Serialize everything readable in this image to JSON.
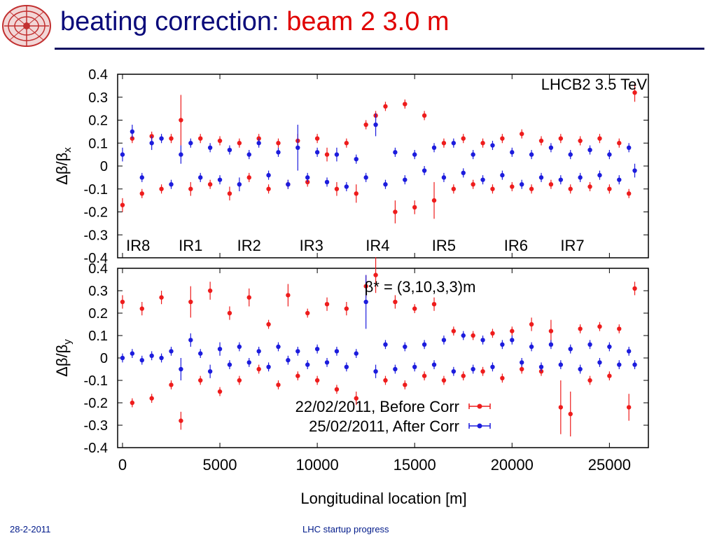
{
  "slide": {
    "title_main": "beating correction:",
    "title_sub": "beam 2  3.0 m",
    "footer_date": "28-2-2011",
    "footer_center": "LHC startup progress",
    "logo_icon": "lhc-logo-icon"
  },
  "colors": {
    "title_blue": "#0a0a7a",
    "title_red": "#e00000",
    "before_series": "#ee1c1c",
    "after_series": "#1c1cdd"
  },
  "chart_data": [
    {
      "type": "scatter",
      "panel": "top",
      "ylabel": "Δβ/βx",
      "xlim": [
        -250,
        27000
      ],
      "ylim": [
        -0.4,
        0.4
      ],
      "yticks": [
        "0.4",
        "0.3",
        "0.2",
        "0.1",
        "0",
        "-0.1",
        "-0.2",
        "-0.3",
        "-0.4"
      ],
      "annotation": "LHCB2 3.5 TeV",
      "ir_labels": [
        {
          "label": "IR8",
          "x": 800
        },
        {
          "label": "IR1",
          "x": 3500
        },
        {
          "label": "IR2",
          "x": 6500
        },
        {
          "label": "IR3",
          "x": 9700
        },
        {
          "label": "IR4",
          "x": 13100
        },
        {
          "label": "IR5",
          "x": 16500
        },
        {
          "label": "IR6",
          "x": 20200
        },
        {
          "label": "IR7",
          "x": 23100
        }
      ],
      "series": [
        {
          "name": "22/02/2011, Before Corr",
          "x": [
            0,
            500,
            1000,
            1500,
            2000,
            2500,
            3000,
            3500,
            4000,
            4500,
            5000,
            5500,
            6000,
            6500,
            7000,
            7500,
            8000,
            8500,
            9000,
            9500,
            10000,
            10500,
            11000,
            11500,
            12000,
            12500,
            13000,
            13500,
            14000,
            14500,
            15000,
            15500,
            16000,
            16500,
            17000,
            17500,
            18000,
            18500,
            19000,
            19500,
            20000,
            20500,
            21000,
            21500,
            22000,
            22500,
            23000,
            23500,
            24000,
            24500,
            25000,
            25500,
            26000,
            26300
          ],
          "values": [
            -0.17,
            0.12,
            -0.12,
            0.13,
            -0.1,
            0.12,
            0.2,
            -0.1,
            0.12,
            -0.08,
            0.11,
            -0.12,
            0.1,
            -0.05,
            0.12,
            -0.1,
            0.1,
            -0.08,
            0.11,
            -0.07,
            0.12,
            0.05,
            -0.1,
            0.1,
            -0.12,
            0.18,
            0.22,
            0.26,
            -0.2,
            0.27,
            -0.18,
            0.22,
            -0.15,
            0.1,
            -0.1,
            0.12,
            -0.08,
            0.1,
            -0.1,
            0.12,
            -0.09,
            0.14,
            -0.1,
            0.11,
            -0.08,
            0.12,
            -0.1,
            0.11,
            -0.09,
            0.12,
            -0.1,
            0.1,
            -0.12,
            0.32
          ],
          "errors": [
            0.03,
            0.02,
            0.02,
            0.02,
            0.02,
            0.02,
            0.11,
            0.03,
            0.02,
            0.02,
            0.02,
            0.03,
            0.02,
            0.02,
            0.02,
            0.02,
            0.02,
            0.02,
            0.03,
            0.02,
            0.02,
            0.03,
            0.03,
            0.02,
            0.04,
            0.02,
            0.02,
            0.02,
            0.05,
            0.02,
            0.03,
            0.02,
            0.08,
            0.02,
            0.02,
            0.02,
            0.02,
            0.02,
            0.02,
            0.02,
            0.02,
            0.02,
            0.02,
            0.02,
            0.02,
            0.02,
            0.02,
            0.02,
            0.02,
            0.02,
            0.02,
            0.02,
            0.02,
            0.04
          ]
        },
        {
          "name": "25/02/2011, After Corr",
          "x": [
            0,
            500,
            1000,
            1500,
            2000,
            2500,
            3000,
            3500,
            4000,
            4500,
            5000,
            5500,
            6000,
            6500,
            7000,
            7500,
            8000,
            8500,
            9000,
            9500,
            10000,
            10500,
            11000,
            11500,
            12000,
            12500,
            13000,
            13500,
            14000,
            14500,
            15000,
            15500,
            16000,
            16500,
            17000,
            17500,
            18000,
            18500,
            19000,
            19500,
            20000,
            20500,
            21000,
            21500,
            22000,
            22500,
            23000,
            23500,
            24000,
            24500,
            25000,
            25500,
            26000,
            26300
          ],
          "values": [
            0.05,
            0.15,
            -0.05,
            0.1,
            0.12,
            -0.08,
            0.05,
            0.1,
            -0.05,
            0.08,
            -0.06,
            0.07,
            -0.08,
            0.05,
            0.1,
            -0.04,
            0.06,
            -0.08,
            0.08,
            -0.05,
            0.06,
            -0.07,
            0.05,
            -0.09,
            0.03,
            -0.05,
            0.18,
            -0.08,
            0.06,
            -0.06,
            0.05,
            -0.02,
            0.08,
            -0.05,
            0.1,
            -0.03,
            0.05,
            -0.06,
            0.09,
            -0.04,
            0.06,
            -0.08,
            0.05,
            -0.05,
            0.08,
            -0.06,
            0.05,
            -0.05,
            0.07,
            -0.04,
            0.05,
            -0.06,
            0.08,
            -0.02
          ],
          "errors": [
            0.03,
            0.03,
            0.02,
            0.03,
            0.02,
            0.02,
            0.04,
            0.02,
            0.02,
            0.02,
            0.02,
            0.02,
            0.03,
            0.02,
            0.02,
            0.02,
            0.02,
            0.02,
            0.1,
            0.02,
            0.02,
            0.02,
            0.03,
            0.02,
            0.02,
            0.02,
            0.05,
            0.02,
            0.02,
            0.02,
            0.02,
            0.02,
            0.02,
            0.02,
            0.02,
            0.02,
            0.02,
            0.02,
            0.02,
            0.02,
            0.02,
            0.02,
            0.02,
            0.02,
            0.02,
            0.02,
            0.02,
            0.02,
            0.02,
            0.02,
            0.02,
            0.02,
            0.02,
            0.03
          ]
        }
      ]
    },
    {
      "type": "scatter",
      "panel": "bottom",
      "ylabel": "Δβ/βy",
      "xlabel": "Longitudinal location [m]",
      "xlim": [
        -250,
        27000
      ],
      "ylim": [
        -0.4,
        0.4
      ],
      "yticks": [
        "0.4",
        "0.3",
        "0.2",
        "0.1",
        "0",
        "-0.1",
        "-0.2",
        "-0.3",
        "-0.4"
      ],
      "xticks": [
        "0",
        "5000",
        "10000",
        "15000",
        "20000",
        "25000"
      ],
      "annotation": "β* = (3,10,3,3)m",
      "legend_placement": "bottom-center",
      "series": [
        {
          "name": "22/02/2011, Before Corr",
          "x": [
            0,
            500,
            1000,
            1500,
            2000,
            2500,
            3000,
            3500,
            4000,
            4500,
            5000,
            5500,
            6000,
            6500,
            7000,
            7500,
            8000,
            8500,
            9000,
            9500,
            10000,
            10500,
            11000,
            11500,
            12000,
            12500,
            13000,
            13500,
            14000,
            14500,
            15000,
            15500,
            16000,
            16500,
            17000,
            17500,
            18000,
            18500,
            19000,
            19500,
            20000,
            20500,
            21000,
            21500,
            22000,
            22500,
            23000,
            23500,
            24000,
            24500,
            25000,
            25500,
            26000,
            26300
          ],
          "values": [
            0.25,
            -0.2,
            0.22,
            -0.18,
            0.27,
            -0.12,
            -0.28,
            0.25,
            -0.1,
            0.3,
            -0.15,
            0.2,
            -0.1,
            0.27,
            -0.05,
            0.15,
            -0.12,
            0.28,
            -0.08,
            0.2,
            -0.1,
            0.24,
            -0.14,
            0.22,
            -0.18,
            0.32,
            0.37,
            -0.1,
            0.25,
            -0.12,
            0.22,
            -0.08,
            0.24,
            -0.1,
            0.12,
            -0.08,
            0.1,
            -0.06,
            0.11,
            -0.09,
            0.12,
            -0.05,
            0.15,
            -0.06,
            0.12,
            -0.22,
            -0.25,
            0.13,
            -0.1,
            0.14,
            -0.08,
            0.13,
            -0.22,
            0.31
          ],
          "errors": [
            0.03,
            0.02,
            0.03,
            0.02,
            0.03,
            0.02,
            0.04,
            0.07,
            0.02,
            0.04,
            0.02,
            0.03,
            0.02,
            0.04,
            0.02,
            0.02,
            0.02,
            0.05,
            0.02,
            0.02,
            0.02,
            0.03,
            0.02,
            0.03,
            0.03,
            0.05,
            0.08,
            0.02,
            0.03,
            0.02,
            0.02,
            0.02,
            0.03,
            0.02,
            0.02,
            0.02,
            0.02,
            0.02,
            0.02,
            0.02,
            0.02,
            0.02,
            0.03,
            0.02,
            0.05,
            0.12,
            0.1,
            0.02,
            0.02,
            0.02,
            0.02,
            0.02,
            0.06,
            0.03
          ]
        },
        {
          "name": "25/02/2011, After Corr",
          "x": [
            0,
            500,
            1000,
            1500,
            2000,
            2500,
            3000,
            3500,
            4000,
            4500,
            5000,
            5500,
            6000,
            6500,
            7000,
            7500,
            8000,
            8500,
            9000,
            9500,
            10000,
            10500,
            11000,
            11500,
            12000,
            12500,
            13000,
            13500,
            14000,
            14500,
            15000,
            15500,
            16000,
            16500,
            17000,
            17500,
            18000,
            18500,
            19000,
            19500,
            20000,
            20500,
            21000,
            21500,
            22000,
            22500,
            23000,
            23500,
            24000,
            24500,
            25000,
            25500,
            26000,
            26300
          ],
          "values": [
            0.0,
            0.02,
            -0.01,
            0.01,
            0.0,
            0.03,
            -0.05,
            0.08,
            0.02,
            -0.06,
            0.04,
            -0.03,
            0.05,
            -0.02,
            0.03,
            -0.04,
            0.05,
            -0.01,
            0.03,
            -0.03,
            0.04,
            -0.02,
            0.03,
            -0.04,
            0.02,
            0.25,
            -0.06,
            0.06,
            -0.05,
            0.05,
            -0.04,
            0.06,
            -0.03,
            0.08,
            -0.06,
            0.1,
            -0.05,
            0.08,
            -0.04,
            0.06,
            0.08,
            -0.02,
            0.05,
            -0.04,
            0.06,
            -0.03,
            0.04,
            -0.05,
            0.06,
            -0.02,
            0.05,
            -0.03,
            0.03,
            -0.03
          ],
          "errors": [
            0.02,
            0.02,
            0.02,
            0.02,
            0.02,
            0.02,
            0.05,
            0.03,
            0.02,
            0.03,
            0.03,
            0.02,
            0.02,
            0.02,
            0.02,
            0.02,
            0.02,
            0.02,
            0.02,
            0.02,
            0.02,
            0.02,
            0.02,
            0.02,
            0.02,
            0.12,
            0.03,
            0.02,
            0.02,
            0.02,
            0.02,
            0.02,
            0.02,
            0.02,
            0.02,
            0.02,
            0.02,
            0.02,
            0.02,
            0.02,
            0.02,
            0.02,
            0.02,
            0.02,
            0.02,
            0.02,
            0.02,
            0.02,
            0.02,
            0.02,
            0.02,
            0.02,
            0.02,
            0.02
          ]
        }
      ]
    }
  ]
}
